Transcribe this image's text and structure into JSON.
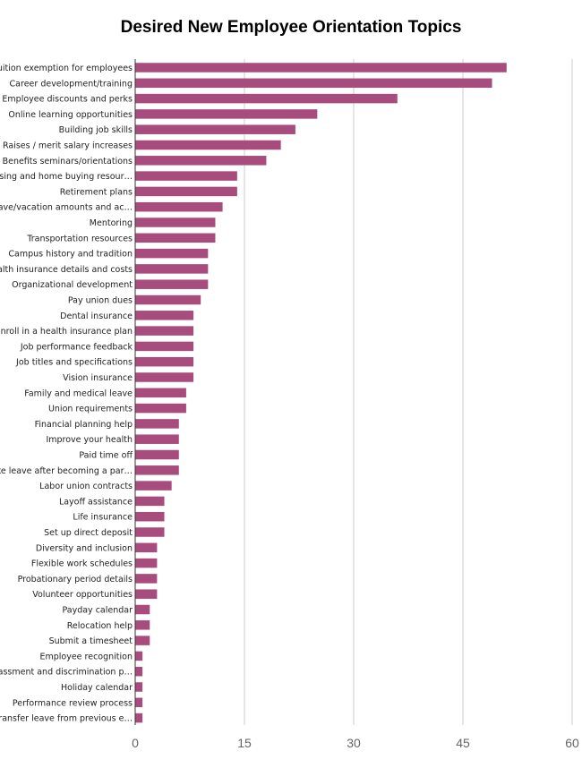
{
  "chart_data": {
    "type": "bar",
    "orientation": "horizontal",
    "title": "Desired New Employee Orientation Topics",
    "xlabel": "",
    "ylabel": "",
    "xlim": [
      0,
      60
    ],
    "xticks": [
      0,
      15,
      30,
      45,
      60
    ],
    "grid": true,
    "bar_color": "#a84c7d",
    "categories": [
      "Tuition exemption for employees",
      "Career development/training",
      "Employee discounts and perks",
      "Online learning opportunities",
      "Building job skills",
      "Raises / merit salary increases",
      "Benefits seminars/orientations",
      "Housing and home buying resour…",
      "Retirement plans",
      "Leave/vacation amounts and ac…",
      "Mentoring",
      "Transportation resources",
      "Campus history and tradition",
      "Health insurance details and costs",
      "Organizational development",
      "Pay union dues",
      "Dental insurance",
      "Enroll in a health insurance plan",
      "Job performance feedback",
      "Job titles and specifications",
      "Vision insurance",
      "Family and medical leave",
      "Union requirements",
      "Financial planning help",
      "Improve your health",
      "Paid time off",
      "Take leave after becoming a par…",
      "Labor union contracts",
      "Layoff assistance",
      "Life insurance",
      "Set up direct deposit",
      "Diversity and inclusion",
      "Flexible work schedules",
      "Probationary period details",
      "Volunteer opportunities",
      "Payday calendar",
      "Relocation help",
      "Submit a timesheet",
      "Employee recognition",
      "Harassment and discrimination p…",
      "Holiday calendar",
      "Performance review process",
      "Transfer leave from previous e…"
    ],
    "values": [
      51,
      49,
      36,
      25,
      22,
      20,
      18,
      14,
      14,
      12,
      11,
      11,
      10,
      10,
      10,
      9,
      8,
      8,
      8,
      8,
      8,
      7,
      7,
      6,
      6,
      6,
      6,
      5,
      4,
      4,
      4,
      3,
      3,
      3,
      3,
      2,
      2,
      2,
      1,
      1,
      1,
      1,
      1
    ]
  }
}
